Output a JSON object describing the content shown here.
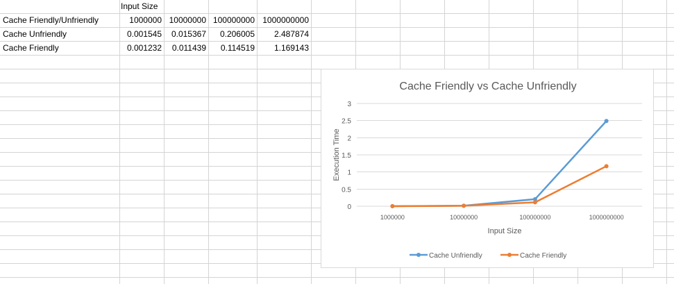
{
  "sheet": {
    "header_label": "Input Size",
    "rows": [
      {
        "label": "Cache Friendly/Unfriendly",
        "values": [
          "1000000",
          "10000000",
          "100000000",
          "1000000000"
        ]
      },
      {
        "label": "Cache Unfriendly",
        "values": [
          "0.001545",
          "0.015367",
          "0.206005",
          "2.487874"
        ]
      },
      {
        "label": "Cache Friendly",
        "values": [
          "0.001232",
          "0.011439",
          "0.114519",
          "1.169143"
        ]
      }
    ]
  },
  "chart_data": {
    "type": "line",
    "title": "Cache Friendly vs Cache Unfriendly",
    "xlabel": "Input Size",
    "ylabel": "Execution Time",
    "categories": [
      "1000000",
      "10000000",
      "100000000",
      "1000000000"
    ],
    "ylim": [
      0,
      3
    ],
    "yticks": [
      "0",
      "0.5",
      "1",
      "1.5",
      "2",
      "2.5",
      "3"
    ],
    "grid": true,
    "legend_position": "bottom",
    "series": [
      {
        "name": "Cache Unfriendly",
        "color": "#5b9bd5",
        "values": [
          0.001545,
          0.015367,
          0.206005,
          2.487874
        ]
      },
      {
        "name": "Cache Friendly",
        "color": "#ed7d31",
        "values": [
          0.001232,
          0.011439,
          0.114519,
          1.169143
        ]
      }
    ]
  }
}
